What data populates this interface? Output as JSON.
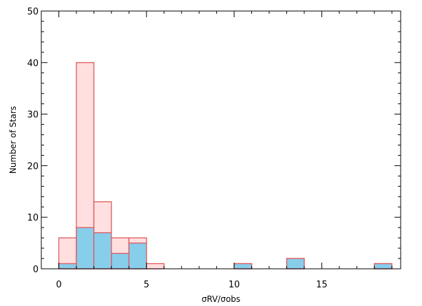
{
  "chart_data": {
    "type": "bar",
    "xlabel": "σRV/σobs",
    "ylabel": "Number of Stars",
    "xlim": [
      -1,
      19.5
    ],
    "ylim": [
      0,
      50
    ],
    "bin_width": 1,
    "x_ticks": [
      0,
      5,
      10,
      15
    ],
    "x_tick_labels": [
      "0",
      "5",
      "10",
      "15"
    ],
    "y_ticks": [
      0,
      10,
      20,
      30,
      40,
      50
    ],
    "y_tick_labels": [
      "0",
      "10",
      "20",
      "30",
      "40",
      "50"
    ],
    "grid": false,
    "series": [
      {
        "values": [
          {
            "x": 0,
            "y": 6
          },
          {
            "x": 1,
            "y": 40
          },
          {
            "x": 2,
            "y": 13
          },
          {
            "x": 3,
            "y": 6
          },
          {
            "x": 4,
            "y": 6
          },
          {
            "x": 5,
            "y": 1
          },
          {
            "x": 6,
            "y": 0
          },
          {
            "x": 7,
            "y": 0
          },
          {
            "x": 8,
            "y": 0
          },
          {
            "x": 9,
            "y": 0
          },
          {
            "x": 10,
            "y": 1
          },
          {
            "x": 11,
            "y": 0
          },
          {
            "x": 12,
            "y": 0
          },
          {
            "x": 13,
            "y": 2
          },
          {
            "x": 14,
            "y": 0
          },
          {
            "x": 15,
            "y": 0
          },
          {
            "x": 16,
            "y": 0
          },
          {
            "x": 17,
            "y": 0
          },
          {
            "x": 18,
            "y": 1
          }
        ],
        "fill": "#ffdfdf",
        "stroke": "#e0595d"
      },
      {
        "values": [
          {
            "x": 0,
            "y": 1
          },
          {
            "x": 1,
            "y": 8
          },
          {
            "x": 2,
            "y": 7
          },
          {
            "x": 3,
            "y": 3
          },
          {
            "x": 4,
            "y": 5
          },
          {
            "x": 5,
            "y": 0
          },
          {
            "x": 6,
            "y": 0
          },
          {
            "x": 7,
            "y": 0
          },
          {
            "x": 8,
            "y": 0
          },
          {
            "x": 9,
            "y": 0
          },
          {
            "x": 10,
            "y": 1
          },
          {
            "x": 11,
            "y": 0
          },
          {
            "x": 12,
            "y": 0
          },
          {
            "x": 13,
            "y": 2
          },
          {
            "x": 14,
            "y": 0
          },
          {
            "x": 15,
            "y": 0
          },
          {
            "x": 16,
            "y": 0
          },
          {
            "x": 17,
            "y": 0
          },
          {
            "x": 18,
            "y": 1
          }
        ],
        "fill": "#87ceeb",
        "stroke": "#e0595d"
      }
    ]
  }
}
